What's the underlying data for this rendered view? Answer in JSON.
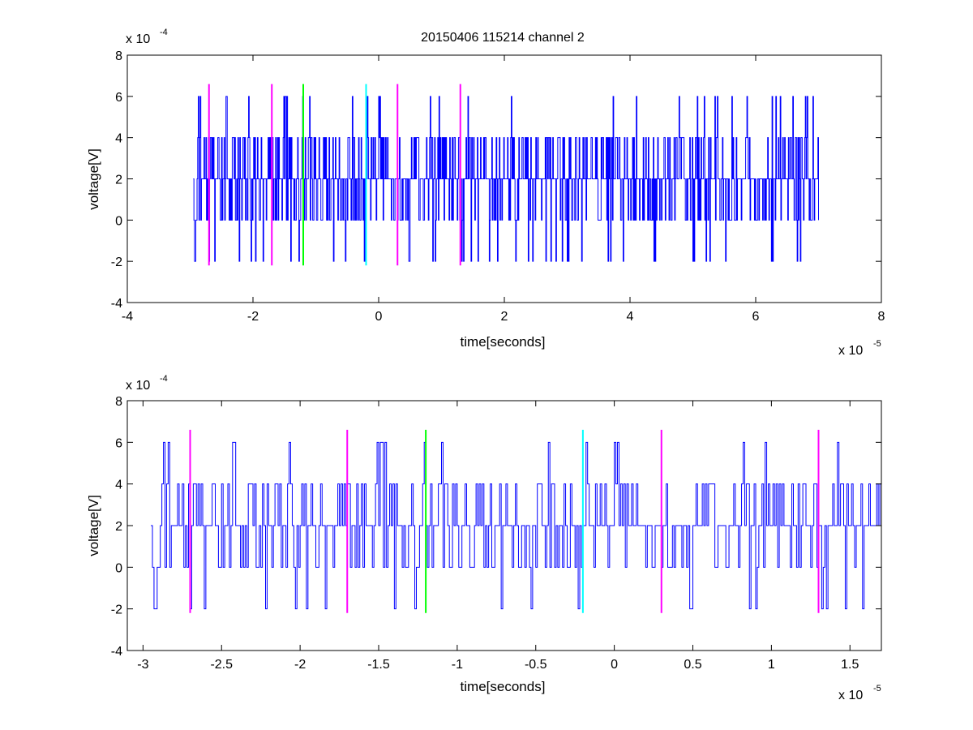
{
  "chart_data": [
    {
      "type": "line",
      "title": "20150406 115214 channel 2",
      "xlabel": "time[seconds]",
      "ylabel": "voltage[V]",
      "xlim": [
        -4e-05,
        8e-05
      ],
      "ylim": [
        -0.0004,
        0.0008
      ],
      "x_ticks": [
        -4,
        -2,
        0,
        2,
        4,
        6,
        8
      ],
      "x_tick_labels": [
        "-4",
        "-2",
        "0",
        "2",
        "4",
        "6",
        "8"
      ],
      "y_ticks": [
        -4,
        -2,
        0,
        2,
        4,
        6,
        8
      ],
      "y_tick_labels": [
        "-2"
      ],
      "y_tick_labels_full": [
        "-4",
        "-2",
        "0",
        "2",
        "4",
        "6",
        "8"
      ],
      "x_multiplier": {
        "base": "x 10",
        "exp": "-5"
      },
      "y_multiplier": {
        "base": "x 10",
        "exp": "-4"
      },
      "grid": false,
      "series": [
        {
          "color": "#0000ff",
          "sample_interval_us": 0.1,
          "x_start_us": -29.5,
          "x_end_us": 70.0,
          "value_levels_e4": [
            -2,
            0,
            2,
            4,
            6
          ],
          "approx_values_e4": [
            2,
            0,
            -2,
            2,
            4,
            2,
            0,
            2,
            4,
            2,
            2,
            0,
            4,
            2,
            2,
            4,
            0,
            2,
            6,
            2,
            4,
            0,
            2,
            2,
            -2,
            4,
            2,
            0,
            2,
            4,
            6,
            2,
            0,
            2,
            4,
            2,
            -2,
            2,
            4,
            2,
            0,
            6,
            2,
            4,
            2,
            0,
            2,
            2,
            4,
            -2,
            2,
            0,
            4,
            2,
            6,
            2,
            0,
            2,
            4,
            2,
            -2,
            2,
            4,
            0,
            2,
            6,
            2,
            4,
            2,
            0
          ]
        }
      ],
      "markers": [
        {
          "x": -2.7e-05,
          "color": "#ff00ff"
        },
        {
          "x": -1.7e-05,
          "color": "#ff00ff"
        },
        {
          "x": -1.2e-05,
          "color": "#00ff00"
        },
        {
          "x": -2e-06,
          "color": "#00ffff"
        },
        {
          "x": 3e-06,
          "color": "#ff00ff"
        },
        {
          "x": 1.3e-05,
          "color": "#ff00ff"
        }
      ],
      "marker_range": [
        -0.00022,
        0.00066
      ]
    },
    {
      "type": "line",
      "title": "",
      "xlabel": "time[seconds]",
      "ylabel": "voltage[V]",
      "xlim": [
        -3.1e-05,
        1.7e-05
      ],
      "ylim": [
        -0.0004,
        0.0008
      ],
      "x_ticks": [
        -3,
        -2.5,
        -2,
        -1.5,
        -1,
        -0.5,
        0,
        0.5,
        1,
        1.5
      ],
      "x_tick_labels": [
        "-3",
        "-2.5",
        "-2",
        "-1.5",
        "-1",
        "-0.5",
        "0",
        "0.5",
        "1",
        "1.5"
      ],
      "y_ticks": [
        -4,
        -2,
        0,
        2,
        4,
        6,
        8
      ],
      "y_tick_labels": [
        "-4",
        "-2",
        "0",
        "2",
        "4",
        "6",
        "8"
      ],
      "x_multiplier": {
        "base": "x 10",
        "exp": "-5"
      },
      "y_multiplier": {
        "base": "x 10",
        "exp": "-4"
      },
      "grid": false,
      "series": [
        {
          "color": "#0000ff",
          "sample_interval_us": 0.1,
          "x_start_us": -29.5,
          "x_end_us": 17.0
        }
      ],
      "markers": [
        {
          "x": -2.7e-05,
          "color": "#ff00ff"
        },
        {
          "x": -1.7e-05,
          "color": "#ff00ff"
        },
        {
          "x": -1.2e-05,
          "color": "#00ff00"
        },
        {
          "x": -2e-06,
          "color": "#00ffff"
        },
        {
          "x": 3e-06,
          "color": "#ff00ff"
        },
        {
          "x": 1.3e-05,
          "color": "#ff00ff"
        }
      ],
      "marker_range": [
        -0.00022,
        0.00066
      ]
    }
  ]
}
